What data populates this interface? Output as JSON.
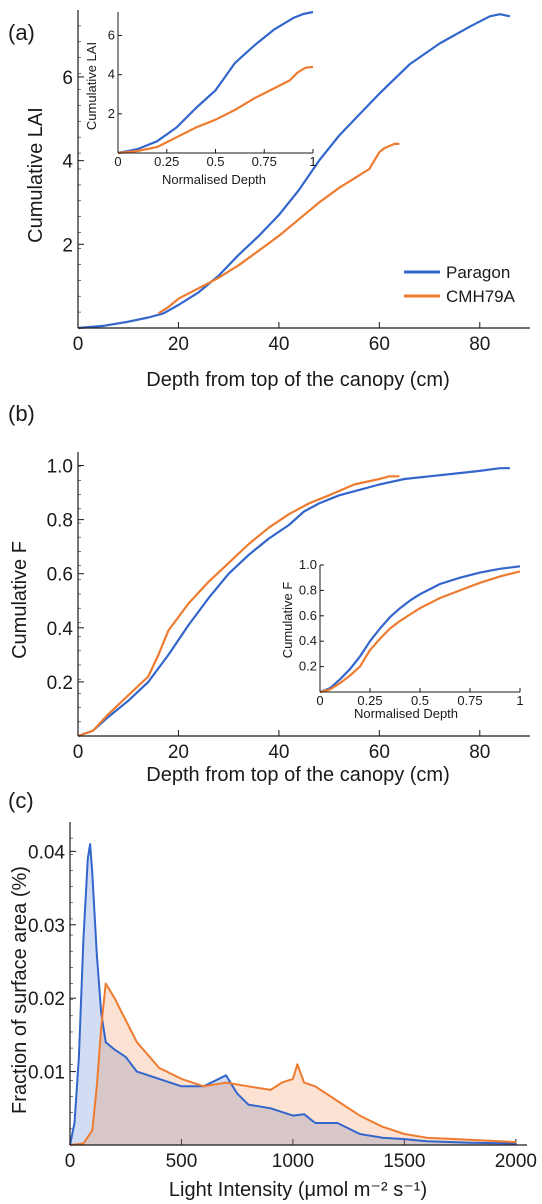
{
  "colors": {
    "paragon": "#3366cc",
    "cmh79a": "#ee7b30",
    "axis": "#1a1a1a"
  },
  "chart_data": [
    {
      "panel_label": "(a)",
      "type": "line",
      "xlabel": "Depth from top of the canopy (cm)",
      "ylabel": "Cumulative LAI",
      "xlim": [
        0,
        90
      ],
      "ylim": [
        0,
        7.6
      ],
      "xticks": [
        "0",
        "20",
        "40",
        "60",
        "80"
      ],
      "yticks": [
        "2",
        "4",
        "6"
      ],
      "legend": {
        "position": "bottom-right",
        "entries": [
          "Paragon",
          "CMH79A"
        ]
      },
      "series": [
        {
          "name": "Paragon",
          "x": [
            0,
            5,
            10,
            14,
            17,
            20,
            24,
            28,
            32,
            36,
            40,
            44,
            48,
            52,
            56,
            60,
            66,
            72,
            78,
            82,
            84,
            86
          ],
          "y": [
            0,
            0.05,
            0.15,
            0.25,
            0.35,
            0.55,
            0.85,
            1.25,
            1.75,
            2.2,
            2.7,
            3.3,
            4.0,
            4.6,
            5.1,
            5.6,
            6.3,
            6.8,
            7.2,
            7.45,
            7.5,
            7.45
          ]
        },
        {
          "name": "CMH79A",
          "x": [
            16,
            18,
            20,
            24,
            28,
            32,
            36,
            40,
            44,
            48,
            52,
            56,
            58,
            59,
            60,
            61,
            62,
            63,
            64
          ],
          "y": [
            0.35,
            0.5,
            0.7,
            0.95,
            1.2,
            1.5,
            1.85,
            2.2,
            2.6,
            3.0,
            3.35,
            3.65,
            3.8,
            4.0,
            4.2,
            4.3,
            4.35,
            4.4,
            4.4
          ]
        }
      ],
      "inset": {
        "xlabel": "Normalised Depth",
        "ylabel": "Cumulative LAI",
        "xlim": [
          0,
          1
        ],
        "ylim": [
          0,
          7.2
        ],
        "xticks": [
          "0",
          "0.25",
          "0.5",
          "0.75",
          "1"
        ],
        "yticks": [
          "2",
          "4",
          "6"
        ],
        "series": [
          {
            "name": "Paragon",
            "x": [
              0,
              0.1,
              0.2,
              0.3,
              0.4,
              0.5,
              0.55,
              0.6,
              0.7,
              0.8,
              0.9,
              0.95,
              1.0
            ],
            "y": [
              0,
              0.2,
              0.6,
              1.3,
              2.3,
              3.2,
              3.9,
              4.6,
              5.5,
              6.3,
              6.9,
              7.1,
              7.2
            ]
          },
          {
            "name": "CMH79A",
            "x": [
              0,
              0.1,
              0.2,
              0.3,
              0.4,
              0.5,
              0.6,
              0.7,
              0.8,
              0.88,
              0.92,
              0.96,
              1.0
            ],
            "y": [
              0,
              0.1,
              0.3,
              0.8,
              1.3,
              1.7,
              2.2,
              2.8,
              3.3,
              3.7,
              4.1,
              4.35,
              4.4
            ]
          }
        ]
      }
    },
    {
      "panel_label": "(b)",
      "type": "line",
      "xlabel": "Depth from top of the canopy (cm)",
      "ylabel": "Cumulative F",
      "xlim": [
        0,
        90
      ],
      "ylim": [
        0,
        1.05
      ],
      "xticks": [
        "0",
        "20",
        "40",
        "60",
        "80"
      ],
      "yticks": [
        "0.2",
        "0.4",
        "0.6",
        "0.8",
        "1.0"
      ],
      "series": [
        {
          "name": "Paragon",
          "x": [
            0,
            3,
            6,
            10,
            14,
            18,
            22,
            26,
            30,
            34,
            38,
            42,
            45,
            48,
            52,
            56,
            60,
            65,
            70,
            75,
            80,
            84,
            86
          ],
          "y": [
            0,
            0.02,
            0.07,
            0.13,
            0.2,
            0.3,
            0.41,
            0.51,
            0.6,
            0.67,
            0.73,
            0.78,
            0.83,
            0.86,
            0.89,
            0.91,
            0.93,
            0.95,
            0.96,
            0.97,
            0.98,
            0.99,
            0.99
          ]
        },
        {
          "name": "CMH79A",
          "x": [
            0,
            3,
            6,
            10,
            14,
            16,
            18,
            22,
            26,
            30,
            34,
            38,
            42,
            46,
            50,
            55,
            60,
            62,
            64
          ],
          "y": [
            0,
            0.02,
            0.08,
            0.15,
            0.22,
            0.3,
            0.39,
            0.49,
            0.57,
            0.64,
            0.71,
            0.77,
            0.82,
            0.86,
            0.89,
            0.93,
            0.95,
            0.96,
            0.96
          ]
        }
      ],
      "inset": {
        "xlabel": "Normalised Depth",
        "ylabel": "Cumulative F",
        "xlim": [
          0,
          1
        ],
        "ylim": [
          0,
          1
        ],
        "xticks": [
          "0",
          "0.25",
          "0.5",
          "0.75",
          "1"
        ],
        "yticks": [
          "0.2",
          "0.4",
          "0.6",
          "0.8",
          "1.0"
        ],
        "series": [
          {
            "name": "Paragon",
            "x": [
              0,
              0.05,
              0.1,
              0.15,
              0.2,
              0.25,
              0.3,
              0.35,
              0.4,
              0.45,
              0.5,
              0.55,
              0.6,
              0.7,
              0.8,
              0.9,
              1.0
            ],
            "y": [
              0,
              0.03,
              0.1,
              0.18,
              0.28,
              0.4,
              0.5,
              0.59,
              0.66,
              0.72,
              0.77,
              0.81,
              0.85,
              0.9,
              0.94,
              0.97,
              0.99
            ]
          },
          {
            "name": "CMH79A",
            "x": [
              0,
              0.05,
              0.1,
              0.15,
              0.2,
              0.25,
              0.3,
              0.35,
              0.4,
              0.45,
              0.5,
              0.6,
              0.7,
              0.8,
              0.9,
              1.0
            ],
            "y": [
              0,
              0.02,
              0.07,
              0.13,
              0.2,
              0.33,
              0.42,
              0.5,
              0.56,
              0.61,
              0.66,
              0.74,
              0.8,
              0.86,
              0.91,
              0.95
            ]
          }
        ]
      }
    },
    {
      "panel_label": "(c)",
      "type": "area",
      "xlabel": "Light Intensity (μmol m⁻² s⁻¹)",
      "ylabel": "Fraction of surface area (%)",
      "xlim": [
        0,
        2050
      ],
      "ylim": [
        0,
        0.044
      ],
      "xticks": [
        "0",
        "500",
        "1000",
        "1500",
        "2000"
      ],
      "yticks": [
        "0.01",
        "0.02",
        "0.03",
        "0.04"
      ],
      "series": [
        {
          "name": "Paragon",
          "x": [
            0,
            20,
            40,
            60,
            80,
            90,
            100,
            120,
            140,
            160,
            200,
            250,
            300,
            400,
            500,
            600,
            700,
            750,
            800,
            900,
            1000,
            1050,
            1100,
            1200,
            1300,
            1400,
            1500,
            1600,
            1800,
            2000
          ],
          "y": [
            0,
            0.003,
            0.012,
            0.028,
            0.039,
            0.041,
            0.037,
            0.026,
            0.018,
            0.014,
            0.013,
            0.012,
            0.01,
            0.009,
            0.008,
            0.008,
            0.0095,
            0.007,
            0.0055,
            0.005,
            0.004,
            0.0042,
            0.003,
            0.003,
            0.0015,
            0.001,
            0.0008,
            0.0005,
            0.0003,
            0.0002
          ]
        },
        {
          "name": "CMH79A",
          "x": [
            0,
            60,
            100,
            120,
            140,
            160,
            200,
            250,
            300,
            400,
            500,
            600,
            700,
            800,
            900,
            950,
            1000,
            1020,
            1050,
            1100,
            1200,
            1300,
            1400,
            1500,
            1600,
            1800,
            2000
          ],
          "y": [
            0,
            0.0002,
            0.002,
            0.008,
            0.016,
            0.022,
            0.02,
            0.017,
            0.014,
            0.0105,
            0.009,
            0.008,
            0.0085,
            0.008,
            0.0075,
            0.0085,
            0.009,
            0.011,
            0.0085,
            0.008,
            0.006,
            0.004,
            0.0025,
            0.0015,
            0.001,
            0.0007,
            0.0004
          ]
        }
      ]
    }
  ]
}
